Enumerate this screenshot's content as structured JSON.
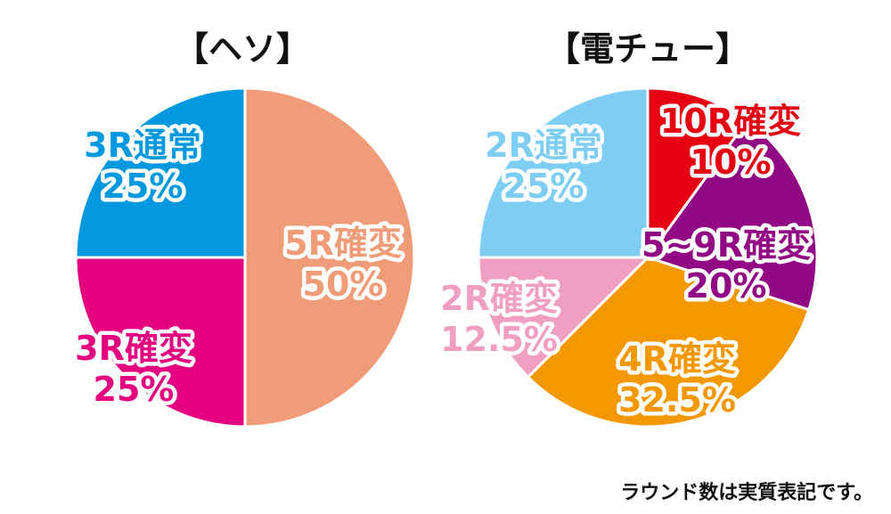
{
  "chart_data": [
    {
      "type": "pie",
      "title": "【ヘソ】",
      "slices": [
        {
          "category": "5R確変",
          "value_label": "50%",
          "value": 50,
          "color": "#F19C79",
          "label_color": "#F19C79"
        },
        {
          "category": "3R確変",
          "value_label": "25%",
          "value": 25,
          "color": "#E4007F",
          "label_color": "#E4007F"
        },
        {
          "category": "3R通常",
          "value_label": "25%",
          "value": 25,
          "color": "#0099E0",
          "label_color": "#0099E0"
        }
      ]
    },
    {
      "type": "pie",
      "title": "【電チュー】",
      "slices": [
        {
          "category": "10R確変",
          "value_label": "10%",
          "value": 10,
          "color": "#E60012",
          "label_color": "#E60012"
        },
        {
          "category": "5~9R確変",
          "value_label": "20%",
          "value": 20,
          "color": "#920783",
          "label_color": "#920783"
        },
        {
          "category": "4R確変",
          "value_label": "32.5%",
          "value": 32.5,
          "color": "#F39800",
          "label_color": "#F39800"
        },
        {
          "category": "2R確変",
          "value_label": "12.5%",
          "value": 12.5,
          "color": "#F09FC3",
          "label_color": "#F09FC3"
        },
        {
          "category": "2R通常",
          "value_label": "25%",
          "value": 25,
          "color": "#7ECEF4",
          "label_color": "#7ECEF4"
        }
      ]
    }
  ],
  "footnote": "ラウンド数は実質表記です。"
}
